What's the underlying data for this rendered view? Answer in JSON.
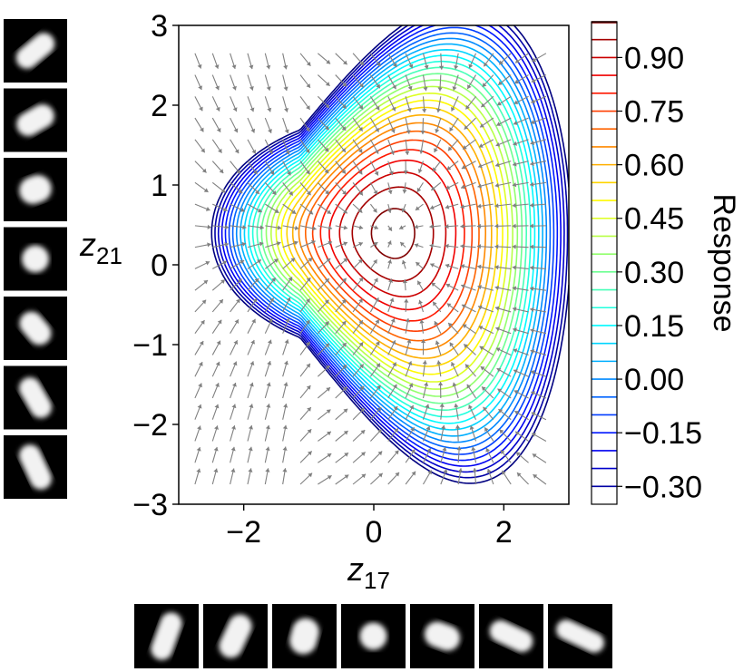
{
  "chart_data": {
    "type": "contour",
    "xlabel": "z",
    "xlabel_subscript": "17",
    "ylabel": "z",
    "ylabel_subscript": "21",
    "xlim": [
      -3,
      3
    ],
    "ylim": [
      -3,
      3
    ],
    "xticks": [
      {
        "value": -2,
        "label": "−2"
      },
      {
        "value": 0,
        "label": "0"
      },
      {
        "value": 2,
        "label": "2"
      }
    ],
    "yticks": [
      {
        "value": 3,
        "label": "3"
      },
      {
        "value": 2,
        "label": "2"
      },
      {
        "value": 1,
        "label": "1"
      },
      {
        "value": 0,
        "label": "0"
      },
      {
        "value": -1,
        "label": "−1"
      },
      {
        "value": -2,
        "label": "−2"
      },
      {
        "value": -3,
        "label": "−3"
      }
    ],
    "peak": {
      "x": 0.3,
      "y": 0.4,
      "value": 1.0
    },
    "colorbar": {
      "title": "Response",
      "min": -0.35,
      "max": 1.0,
      "levels": [
        -0.35,
        -0.3,
        -0.25,
        -0.2,
        -0.15,
        -0.1,
        -0.05,
        0.0,
        0.05,
        0.1,
        0.15,
        0.2,
        0.25,
        0.3,
        0.35,
        0.4,
        0.45,
        0.5,
        0.55,
        0.6,
        0.65,
        0.7,
        0.75,
        0.8,
        0.85,
        0.9,
        0.95,
        1.0
      ],
      "ticks": [
        {
          "value": 0.9,
          "label": "0.90"
        },
        {
          "value": 0.75,
          "label": "0.75"
        },
        {
          "value": 0.6,
          "label": "0.60"
        },
        {
          "value": 0.45,
          "label": "0.45"
        },
        {
          "value": 0.3,
          "label": "0.30"
        },
        {
          "value": 0.15,
          "label": "0.15"
        },
        {
          "value": 0.0,
          "label": "0.00"
        },
        {
          "value": -0.15,
          "label": "−0.15"
        },
        {
          "value": -0.3,
          "label": "−0.30"
        }
      ]
    },
    "gradient_field": {
      "color": "#808080",
      "converges_to": "peak"
    },
    "y_axis_thumbnails": {
      "count": 7,
      "description_values": [
        "elongated diagonal",
        "elongated diagonal",
        "oval",
        "round",
        "oval tilted",
        "elongated tilted",
        "elongated tilted"
      ]
    },
    "x_axis_thumbnails": {
      "count": 7
    }
  }
}
